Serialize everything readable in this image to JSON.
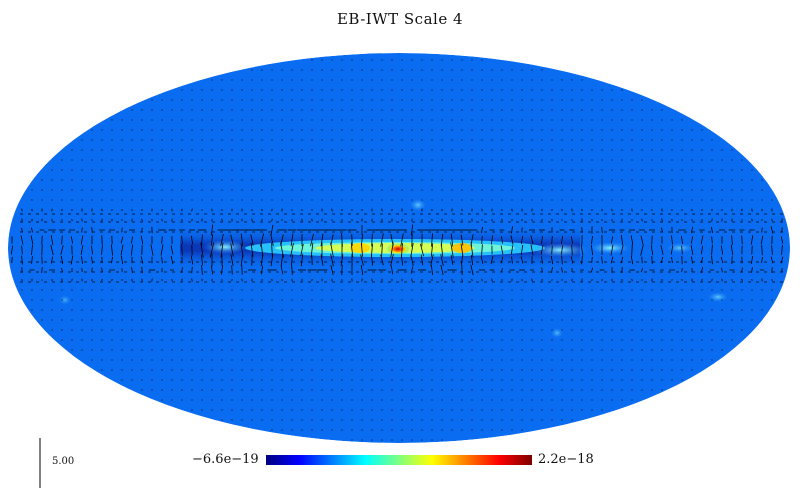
{
  "title": "EB-IWT Scale 4",
  "scale_bar": {
    "label": "5.00"
  },
  "colorbar": {
    "min_label": "−6.6e−19",
    "max_label": "2.2e−18",
    "colormap": [
      "#00007f",
      "#0000ff",
      "#007fff",
      "#00ffff",
      "#7fff7f",
      "#ffff00",
      "#ff7f00",
      "#ff0000",
      "#7f0000"
    ]
  },
  "colors": {
    "background_field": "#0a6cf0",
    "vector": "#000000"
  }
}
